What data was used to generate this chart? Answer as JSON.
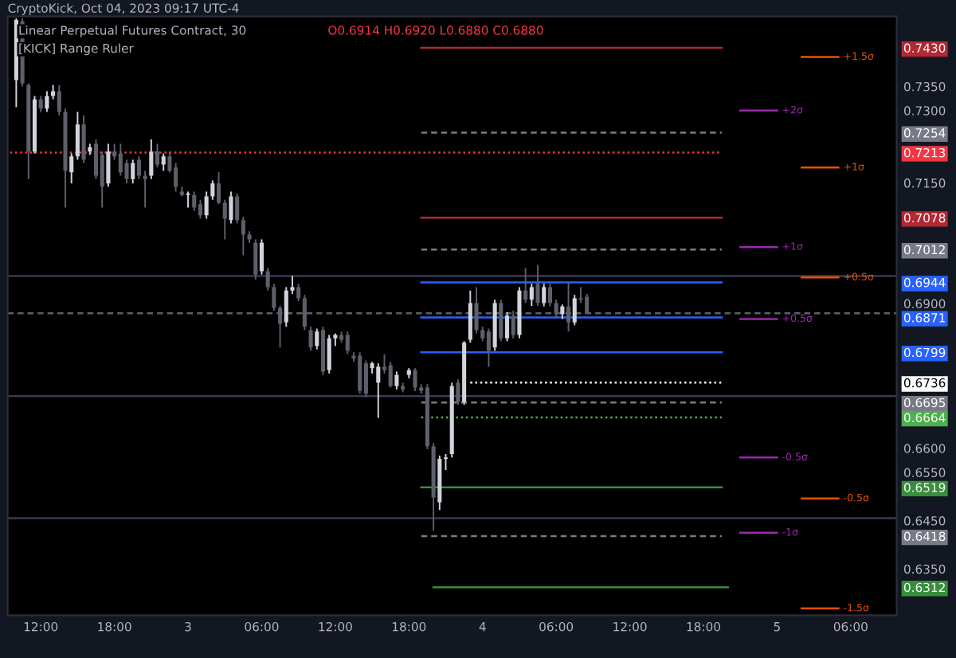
{
  "chart_data": {
    "type": "candlestick",
    "title": "Linear Perpetual Futures Contract, 30",
    "subtitle": "O0.6914 H0.6920 L0.6880 C0.6880",
    "annotations": [
      "CryptoKick, Oct 04, 2023 09:17 UTC-4",
      "[KICK] Range Ruler"
    ],
    "x": [
      "2023-10-02T10:00",
      "2023-10-02T10:30",
      "2023-10-02T11:00",
      "2023-10-02T11:30",
      "2023-10-02T12:00",
      "2023-10-02T12:30",
      "2023-10-02T13:00",
      "2023-10-02T13:30",
      "2023-10-02T14:00",
      "2023-10-02T14:30",
      "2023-10-02T15:00",
      "2023-10-02T15:30",
      "2023-10-02T16:00",
      "2023-10-02T16:30",
      "2023-10-02T17:00",
      "2023-10-02T17:30",
      "2023-10-02T18:00",
      "2023-10-02T18:30",
      "2023-10-02T19:00",
      "2023-10-02T19:30",
      "2023-10-02T20:00",
      "2023-10-02T20:30",
      "2023-10-02T21:00",
      "2023-10-02T21:30",
      "2023-10-02T22:00",
      "2023-10-02T22:30",
      "2023-10-02T23:00",
      "2023-10-02T23:30",
      "2023-10-03T00:00",
      "2023-10-03T00:30",
      "2023-10-03T01:00",
      "2023-10-03T01:30",
      "2023-10-03T02:00",
      "2023-10-03T02:30",
      "2023-10-03T03:00",
      "2023-10-03T03:30",
      "2023-10-03T04:00",
      "2023-10-03T04:30",
      "2023-10-03T05:00",
      "2023-10-03T05:30",
      "2023-10-03T06:00",
      "2023-10-03T06:30",
      "2023-10-03T07:00",
      "2023-10-03T07:30",
      "2023-10-03T08:00",
      "2023-10-03T08:30",
      "2023-10-03T09:00",
      "2023-10-03T09:30",
      "2023-10-03T10:00",
      "2023-10-03T10:30",
      "2023-10-03T11:00",
      "2023-10-03T11:30",
      "2023-10-03T12:00",
      "2023-10-03T12:30",
      "2023-10-03T13:00",
      "2023-10-03T13:30",
      "2023-10-03T14:00",
      "2023-10-03T14:30",
      "2023-10-03T15:00",
      "2023-10-03T15:30",
      "2023-10-03T16:00",
      "2023-10-03T16:30",
      "2023-10-03T17:00",
      "2023-10-03T17:30",
      "2023-10-03T18:00",
      "2023-10-03T18:30",
      "2023-10-03T19:00",
      "2023-10-03T19:30",
      "2023-10-03T20:00",
      "2023-10-03T20:30",
      "2023-10-03T21:00",
      "2023-10-03T21:30",
      "2023-10-03T22:00",
      "2023-10-03T22:30",
      "2023-10-03T23:00",
      "2023-10-03T23:30",
      "2023-10-04T00:00",
      "2023-10-04T00:30",
      "2023-10-04T01:00",
      "2023-10-04T01:30",
      "2023-10-04T02:00",
      "2023-10-04T02:30",
      "2023-10-04T03:00",
      "2023-10-04T03:30",
      "2023-10-04T04:00",
      "2023-10-04T04:30",
      "2023-10-04T05:00",
      "2023-10-04T05:30",
      "2023-10-04T06:00",
      "2023-10-04T06:30",
      "2023-10-04T07:00",
      "2023-10-04T07:30",
      "2023-10-04T08:00",
      "2023-10-04T08:30"
    ],
    "ohlc": [
      [
        0.7363,
        0.7491,
        0.7307,
        0.7488
      ],
      [
        0.7485,
        0.7491,
        0.735,
        0.7356
      ],
      [
        0.7353,
        0.7356,
        0.7158,
        0.7215
      ],
      [
        0.7215,
        0.733,
        0.7211,
        0.7323
      ],
      [
        0.7323,
        0.733,
        0.7297,
        0.7304
      ],
      [
        0.7304,
        0.734,
        0.7297,
        0.733
      ],
      [
        0.733,
        0.7353,
        0.7323,
        0.734
      ],
      [
        0.734,
        0.7353,
        0.729,
        0.7297
      ],
      [
        0.7297,
        0.7304,
        0.7099,
        0.7175
      ],
      [
        0.7172,
        0.7211,
        0.7149,
        0.7205
      ],
      [
        0.7205,
        0.7297,
        0.7198,
        0.7271
      ],
      [
        0.7271,
        0.729,
        0.7191,
        0.7198
      ],
      [
        0.7215,
        0.7231,
        0.7208,
        0.7224
      ],
      [
        0.7231,
        0.724,
        0.7158,
        0.7165
      ],
      [
        0.7208,
        0.7215,
        0.7099,
        0.7142
      ],
      [
        0.7149,
        0.7231,
        0.7142,
        0.7215
      ],
      [
        0.7215,
        0.7231,
        0.7198,
        0.7205
      ],
      [
        0.7211,
        0.7231,
        0.7165,
        0.7172
      ],
      [
        0.7191,
        0.7198,
        0.7149,
        0.7158
      ],
      [
        0.7158,
        0.7198,
        0.7149,
        0.7191
      ],
      [
        0.7198,
        0.7205,
        0.7158,
        0.7165
      ],
      [
        0.7165,
        0.7175,
        0.7099,
        0.7158
      ],
      [
        0.7165,
        0.724,
        0.7158,
        0.7215
      ],
      [
        0.7215,
        0.7231,
        0.7182,
        0.7188
      ],
      [
        0.7188,
        0.7211,
        0.7175,
        0.7205
      ],
      [
        0.7205,
        0.7215,
        0.7172,
        0.7175
      ],
      [
        0.7182,
        0.7191,
        0.7132,
        0.7142
      ],
      [
        0.7132,
        0.7142,
        0.7122,
        0.7125
      ],
      [
        0.7125,
        0.7132,
        0.7099,
        0.7128
      ],
      [
        0.7125,
        0.7132,
        0.7092,
        0.7099
      ],
      [
        0.7106,
        0.7115,
        0.7076,
        0.7083
      ],
      [
        0.7083,
        0.7132,
        0.7076,
        0.7122
      ],
      [
        0.7122,
        0.7155,
        0.7115,
        0.7149
      ],
      [
        0.7149,
        0.7172,
        0.7106,
        0.7109
      ],
      [
        0.7109,
        0.7115,
        0.7033,
        0.7076
      ],
      [
        0.7073,
        0.7132,
        0.7066,
        0.7122
      ],
      [
        0.7122,
        0.7128,
        0.7066,
        0.7073
      ],
      [
        0.7073,
        0.708,
        0.7,
        0.7043
      ],
      [
        0.7043,
        0.705,
        0.7026,
        0.7033
      ],
      [
        0.7026,
        0.7033,
        0.695,
        0.696
      ],
      [
        0.6967,
        0.7033,
        0.696,
        0.7026
      ],
      [
        0.6967,
        0.6974,
        0.6927,
        0.6934
      ],
      [
        0.6934,
        0.6941,
        0.6885,
        0.6891
      ],
      [
        0.6891,
        0.6895,
        0.6809,
        0.6858
      ],
      [
        0.6861,
        0.6934,
        0.6852,
        0.6927
      ],
      [
        0.6927,
        0.6957,
        0.692,
        0.6934
      ],
      [
        0.6934,
        0.6941,
        0.6905,
        0.6911
      ],
      [
        0.6911,
        0.6918,
        0.6845,
        0.6852
      ],
      [
        0.6845,
        0.6852,
        0.6802,
        0.6809
      ],
      [
        0.6812,
        0.6848,
        0.6805,
        0.6842
      ],
      [
        0.6845,
        0.6852,
        0.6752,
        0.6759
      ],
      [
        0.6762,
        0.6835,
        0.6755,
        0.6828
      ],
      [
        0.6828,
        0.6838,
        0.6812,
        0.6835
      ],
      [
        0.6835,
        0.6842,
        0.6819,
        0.6825
      ],
      [
        0.6835,
        0.6842,
        0.6795,
        0.6802
      ],
      [
        0.6792,
        0.6799,
        0.6779,
        0.6786
      ],
      [
        0.6792,
        0.6799,
        0.6713,
        0.6719
      ],
      [
        0.6776,
        0.6782,
        0.6706,
        0.6713
      ],
      [
        0.6766,
        0.6779,
        0.6755,
        0.6776
      ],
      [
        0.6736,
        0.6776,
        0.6663,
        0.6769
      ],
      [
        0.6769,
        0.6795,
        0.6755,
        0.6762
      ],
      [
        0.6772,
        0.6779,
        0.6726,
        0.6729
      ],
      [
        0.6729,
        0.6759,
        0.6722,
        0.6752
      ],
      [
        0.6729,
        0.6736,
        0.6716,
        0.6722
      ],
      [
        0.6752,
        0.6766,
        0.6745,
        0.6762
      ],
      [
        0.6762,
        0.6766,
        0.6719,
        0.6726
      ],
      [
        0.6726,
        0.6733,
        0.6713,
        0.6719
      ],
      [
        0.6726,
        0.6733,
        0.6598,
        0.6604
      ],
      [
        0.6604,
        0.6611,
        0.6429,
        0.6498
      ],
      [
        0.6488,
        0.6585,
        0.6472,
        0.6578
      ],
      [
        0.6578,
        0.6588,
        0.6555,
        0.6581
      ],
      [
        0.6588,
        0.6736,
        0.6581,
        0.6729
      ],
      [
        0.6736,
        0.6743,
        0.669,
        0.6696
      ],
      [
        0.6696,
        0.6822,
        0.669,
        0.6819
      ],
      [
        0.6825,
        0.6927,
        0.6819,
        0.6901
      ],
      [
        0.6901,
        0.6934,
        0.6838,
        0.6845
      ],
      [
        0.6845,
        0.6852,
        0.6822,
        0.6828
      ],
      [
        0.6842,
        0.6848,
        0.6769,
        0.6802
      ],
      [
        0.6809,
        0.6908,
        0.6802,
        0.6901
      ],
      [
        0.6901,
        0.6908,
        0.6822,
        0.6828
      ],
      [
        0.6828,
        0.6882,
        0.6822,
        0.6875
      ],
      [
        0.6875,
        0.6885,
        0.6828,
        0.6835
      ],
      [
        0.6835,
        0.6934,
        0.6828,
        0.6927
      ],
      [
        0.6927,
        0.6974,
        0.6901,
        0.6908
      ],
      [
        0.6908,
        0.6941,
        0.6895,
        0.6934
      ],
      [
        0.6941,
        0.698,
        0.6895,
        0.6901
      ],
      [
        0.6901,
        0.6941,
        0.6894,
        0.6934
      ],
      [
        0.6934,
        0.6941,
        0.6894,
        0.6901
      ],
      [
        0.6901,
        0.6908,
        0.6872,
        0.6878
      ],
      [
        0.6878,
        0.6898,
        0.6868,
        0.6894
      ],
      [
        0.6894,
        0.6944,
        0.6842,
        0.6861
      ],
      [
        0.6861,
        0.6918,
        0.6855,
        0.6911
      ],
      [
        0.6911,
        0.6934,
        0.6901,
        0.6908
      ],
      [
        0.6914,
        0.692,
        0.688,
        0.688
      ]
    ],
    "colors": [
      "#d1d4dc",
      "#5d606b",
      "#5d606b",
      "#d1d4dc",
      "#5d606b",
      "#d1d4dc",
      "#d1d4dc",
      "#5d606b",
      "#5d606b",
      "#d1d4dc",
      "#d1d4dc",
      "#5d606b",
      "#d1d4dc",
      "#5d606b",
      "#5d606b",
      "#d1d4dc",
      "#5d606b",
      "#5d606b",
      "#5d606b",
      "#d1d4dc",
      "#5d606b",
      "#5d606b",
      "#d1d4dc",
      "#5d606b",
      "#d1d4dc",
      "#5d606b",
      "#5d606b",
      "#5d606b",
      "#d1d4dc",
      "#5d606b",
      "#5d606b",
      "#d1d4dc",
      "#d1d4dc",
      "#5d606b",
      "#5d606b",
      "#d1d4dc",
      "#5d606b",
      "#5d606b",
      "#5d606b",
      "#5d606b",
      "#d1d4dc",
      "#5d606b",
      "#5d606b",
      "#5d606b",
      "#d1d4dc",
      "#d1d4dc",
      "#5d606b",
      "#5d606b",
      "#5d606b",
      "#d1d4dc",
      "#5d606b",
      "#d1d4dc",
      "#d1d4dc",
      "#5d606b",
      "#5d606b",
      "#5d606b",
      "#5d606b",
      "#5d606b",
      "#d1d4dc",
      "#d1d4dc",
      "#5d606b",
      "#5d606b",
      "#d1d4dc",
      "#5d606b",
      "#d1d4dc",
      "#5d606b",
      "#5d606b",
      "#5d606b",
      "#5d606b",
      "#d1d4dc",
      "#d1d4dc",
      "#d1d4dc",
      "#5d606b",
      "#d1d4dc",
      "#d1d4dc",
      "#5d606b",
      "#5d606b",
      "#5d606b",
      "#d1d4dc",
      "#5d606b",
      "#d1d4dc",
      "#5d606b",
      "#d1d4dc",
      "#5d606b",
      "#d1d4dc",
      "#5d606b",
      "#d1d4dc",
      "#5d606b",
      "#5d606b",
      "#d1d4dc",
      "#5d606b",
      "#d1d4dc",
      "#5d606b",
      "#5d606b"
    ],
    "series": [
      {
        "type": "line",
        "x": [
          "2023-10-03T19:00",
          "2023-10-04T19:30"
        ],
        "values": [
          0.743,
          0.743
        ],
        "color": "#b22833",
        "line_style": "solid"
      },
      {
        "type": "line",
        "x": [
          "2023-10-03T19:00",
          "2023-10-04T19:30"
        ],
        "values": [
          0.7254,
          0.7254
        ],
        "color": "#787b86",
        "line_style": "dashed"
      },
      {
        "type": "line",
        "x": [
          "2023-10-02T09:30",
          "2023-10-04T19:30"
        ],
        "values": [
          0.7213,
          0.7213
        ],
        "color": "#f23645",
        "line_style": "dotted"
      },
      {
        "type": "line",
        "x": [
          "2023-10-03T19:00",
          "2023-10-04T19:30"
        ],
        "values": [
          0.7078,
          0.7078
        ],
        "color": "#b22833",
        "line_style": "solid"
      },
      {
        "type": "line",
        "x": [
          "2023-10-03T19:00",
          "2023-10-04T19:30"
        ],
        "values": [
          0.7012,
          0.7012
        ],
        "color": "#787b86",
        "line_style": "dashed"
      },
      {
        "type": "line",
        "x": [
          "2023-10-03T19:00",
          "2023-10-04T19:30"
        ],
        "values": [
          0.6944,
          0.6944
        ],
        "color": "#2962ff",
        "line_style": "solid"
      },
      {
        "type": "line",
        "x": [
          "2023-10-03T19:00",
          "2023-10-04T19:30"
        ],
        "values": [
          0.6871,
          0.6871
        ],
        "color": "#2962ff",
        "line_style": "solid"
      },
      {
        "type": "line",
        "x": [
          "2023-10-03T19:00",
          "2023-10-04T19:30"
        ],
        "values": [
          0.6799,
          0.6799
        ],
        "color": "#2962ff",
        "line_style": "solid"
      },
      {
        "type": "line",
        "x": [
          "2023-10-03T23:00",
          "2023-10-04T19:30"
        ],
        "values": [
          0.6736,
          0.6736
        ],
        "color": "#ffffff",
        "line_style": "dotted"
      },
      {
        "type": "line",
        "x": [
          "2023-10-03T19:00",
          "2023-10-04T19:30"
        ],
        "values": [
          0.6695,
          0.6695
        ],
        "color": "#787b86",
        "line_style": "dashed"
      },
      {
        "type": "line",
        "x": [
          "2023-10-03T19:00",
          "2023-10-04T19:30"
        ],
        "values": [
          0.6664,
          0.6664
        ],
        "color": "#4caf50",
        "line_style": "dotted"
      },
      {
        "type": "line",
        "x": [
          "2023-10-03T19:00",
          "2023-10-04T19:30"
        ],
        "values": [
          0.6519,
          0.6519
        ],
        "color": "#388e3c",
        "line_style": "solid"
      },
      {
        "type": "line",
        "x": [
          "2023-10-03T19:00",
          "2023-10-04T19:30"
        ],
        "values": [
          0.6418,
          0.6418
        ],
        "color": "#787b86",
        "line_style": "dashed"
      },
      {
        "type": "line",
        "x": [
          "2023-10-03T20:00",
          "2023-10-04T20:00"
        ],
        "values": [
          0.6312,
          0.6312
        ],
        "color": "#388e3c",
        "line_style": "solid"
      },
      {
        "type": "line",
        "name": "+2σ",
        "x": [
          "2023-10-04T21:00",
          "2023-10-05T00:00"
        ],
        "values": [
          0.73,
          0.73
        ],
        "color": "#9c27b0",
        "line_style": "solid"
      },
      {
        "type": "line",
        "name": "+1σ",
        "x": [
          "2023-10-04T21:00",
          "2023-10-05T00:00"
        ],
        "values": [
          0.7017,
          0.7017
        ],
        "color": "#9c27b0",
        "line_style": "solid"
      },
      {
        "type": "line",
        "name": "+0.5σ",
        "x": [
          "2023-10-04T21:00",
          "2023-10-05T00:00"
        ],
        "values": [
          0.6868,
          0.6868
        ],
        "color": "#9c27b0",
        "line_style": "solid"
      },
      {
        "type": "line",
        "name": "-0.5σ",
        "x": [
          "2023-10-04T21:00",
          "2023-10-05T00:00"
        ],
        "values": [
          0.6581,
          0.6581
        ],
        "color": "#9c27b0",
        "line_style": "solid"
      },
      {
        "type": "line",
        "name": "-1σ",
        "x": [
          "2023-10-04T21:00",
          "2023-10-05T00:00"
        ],
        "values": [
          0.6425,
          0.6425
        ],
        "color": "#9c27b0",
        "line_style": "solid"
      },
      {
        "type": "line",
        "name": "+1.5σ",
        "x": [
          "2023-10-05T02:00",
          "2023-10-05T05:00"
        ],
        "values": [
          0.7411,
          0.7411
        ],
        "color": "#e65100",
        "line_style": "solid"
      },
      {
        "type": "line",
        "name": "+1σ",
        "x": [
          "2023-10-05T02:00",
          "2023-10-05T05:00"
        ],
        "values": [
          0.7182,
          0.7182
        ],
        "color": "#e65100",
        "line_style": "solid"
      },
      {
        "type": "line",
        "name": "+0.5σ",
        "x": [
          "2023-10-05T02:00",
          "2023-10-05T05:00"
        ],
        "values": [
          0.6954,
          0.6954
        ],
        "color": "#e65100",
        "line_style": "solid"
      },
      {
        "type": "line",
        "name": "-0.5σ",
        "x": [
          "2023-10-05T02:00",
          "2023-10-05T05:00"
        ],
        "values": [
          0.6496,
          0.6496
        ],
        "color": "#e65100",
        "line_style": "solid"
      },
      {
        "type": "line",
        "name": "-1.5σ",
        "x": [
          "2023-10-05T02:00",
          "2023-10-05T05:00"
        ],
        "values": [
          0.6268,
          0.6268
        ],
        "color": "#e65100",
        "line_style": "solid"
      }
    ],
    "ref_lines": [
      {
        "axis": "y",
        "value": 0.6957,
        "color": "#363a59",
        "line_style": "solid"
      },
      {
        "axis": "y",
        "value": 0.6708,
        "color": "#363a59",
        "line_style": "solid"
      },
      {
        "axis": "y",
        "value": 0.6455,
        "color": "#363a59",
        "line_style": "solid"
      },
      {
        "axis": "y",
        "value": 0.688,
        "color": "#5d606b",
        "line_style": "dashed"
      }
    ],
    "xlim": [
      "2023-10-02T09:18",
      "2023-10-05T09:45"
    ],
    "xticks": [
      {
        "value": "2023-10-02T12:00",
        "label": "12:00"
      },
      {
        "value": "2023-10-02T18:00",
        "label": "18:00"
      },
      {
        "value": "2023-10-03",
        "label": "3"
      },
      {
        "value": "2023-10-03T06:00",
        "label": "06:00"
      },
      {
        "value": "2023-10-03T12:00",
        "label": "12:00"
      },
      {
        "value": "2023-10-03T18:00",
        "label": "18:00"
      },
      {
        "value": "2023-10-04",
        "label": "4"
      },
      {
        "value": "2023-10-04T06:00",
        "label": "06:00"
      },
      {
        "value": "2023-10-04T12:00",
        "label": "12:00"
      },
      {
        "value": "2023-10-04T18:00",
        "label": "18:00"
      },
      {
        "value": "2023-10-05",
        "label": "5"
      },
      {
        "value": "2023-10-05T06:00",
        "label": "06:00"
      }
    ],
    "ylim": [
      0.6254,
      0.7495
    ],
    "yticks": [
      {
        "value": 0.743,
        "label": "0.7430"
      },
      {
        "value": 0.735,
        "label": "0.7350"
      },
      {
        "value": 0.73,
        "label": "0.7300"
      },
      {
        "value": 0.7254,
        "label": "0.7254"
      },
      {
        "value": 0.7213,
        "label": "0.7213"
      },
      {
        "value": 0.715,
        "label": "0.7150"
      },
      {
        "value": 0.7078,
        "label": "0.7078"
      },
      {
        "value": 0.7012,
        "label": "0.7012"
      },
      {
        "value": 0.6944,
        "label": "0.6944"
      },
      {
        "value": 0.69,
        "label": "0.6900"
      },
      {
        "value": 0.6871,
        "label": "0.6871"
      },
      {
        "value": 0.6799,
        "label": "0.6799"
      },
      {
        "value": 0.6736,
        "label": "0.6736"
      },
      {
        "value": 0.6695,
        "label": "0.6695"
      },
      {
        "value": 0.6664,
        "label": "0.6664"
      },
      {
        "value": 0.66,
        "label": "0.6600"
      },
      {
        "value": 0.655,
        "label": "0.6550"
      },
      {
        "value": 0.6519,
        "label": "0.6519"
      },
      {
        "value": 0.645,
        "label": "0.6450"
      },
      {
        "value": 0.6418,
        "label": "0.6418"
      },
      {
        "value": 0.635,
        "label": "0.6350"
      },
      {
        "value": 0.6312,
        "label": "0.6312"
      }
    ],
    "grid": false,
    "legend": false
  }
}
